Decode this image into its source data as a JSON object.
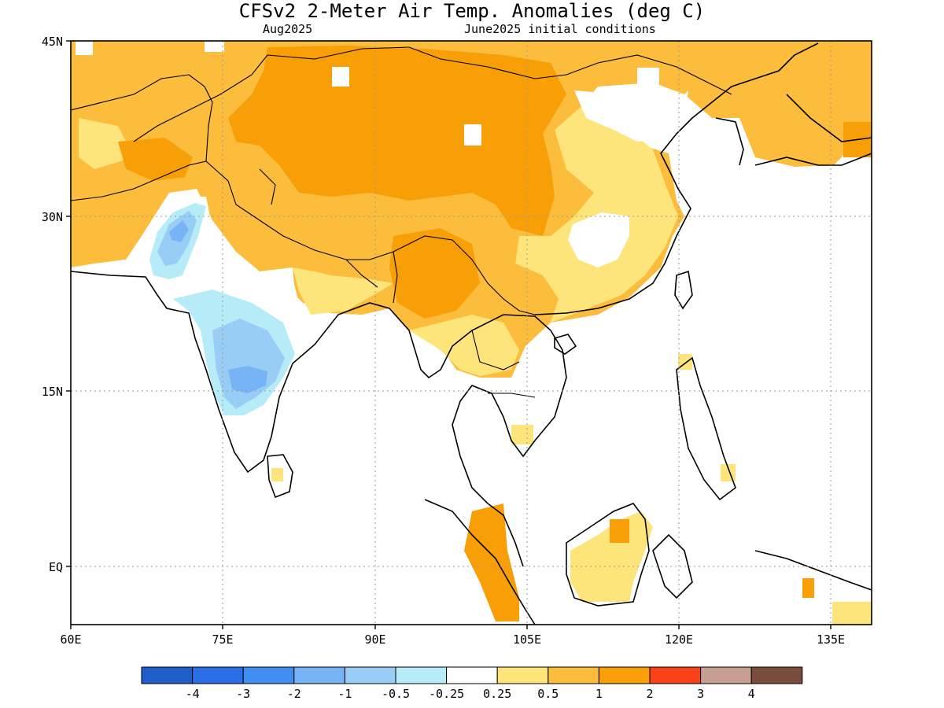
{
  "title": "CFSv2 2-Meter Air Temp. Anomalies (deg C)",
  "valid_month": "Aug2025",
  "init": "June2025 initial conditions",
  "map": {
    "lat_ticks": [
      "45N",
      "30N",
      "15N",
      "EQ"
    ],
    "lon_ticks": [
      "60E",
      "75E",
      "90E",
      "105E",
      "120E",
      "135E"
    ],
    "gridlines": true
  },
  "colorbar": {
    "labels": [
      "-4",
      "-3",
      "-2",
      "-1",
      "-0.5",
      "-0.25",
      "0.25",
      "0.5",
      "1",
      "2",
      "3",
      "4"
    ],
    "colors": [
      "#1f5ec8",
      "#2a6fe6",
      "#3f8ef0",
      "#77b4f5",
      "#98cdf6",
      "#b5ecf7",
      "#ffffff",
      "#fde57c",
      "#fbbd3b",
      "#f89f08",
      "#f7421a",
      "#c69f90",
      "#7a4c3c"
    ]
  }
}
